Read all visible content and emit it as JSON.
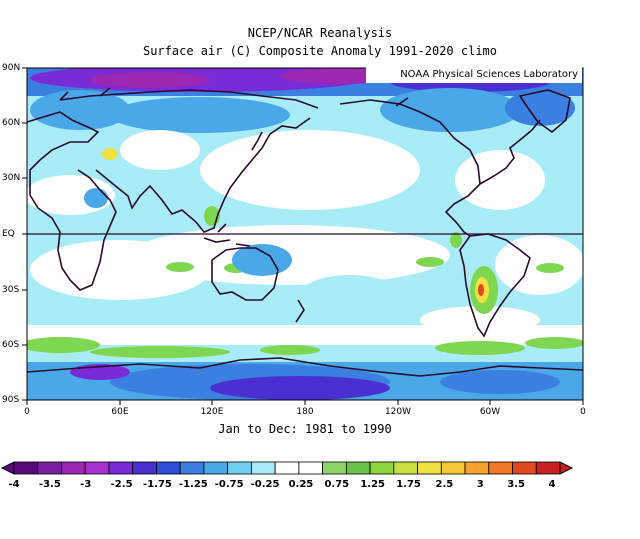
{
  "title": "NCEP/NCAR Reanalysis",
  "subtitle": "Surface air (C) Composite Anomaly 1991-2020 climo",
  "credit": "NOAA Physical Sciences Laboratory",
  "period": "Jan to Dec: 1981 to 1990",
  "lat_labels": [
    "90N",
    "60N",
    "30N",
    "EQ",
    "30S",
    "60S",
    "90S"
  ],
  "lon_labels": [
    "0",
    "60E",
    "120E",
    "180",
    "120W",
    "60W",
    "0"
  ],
  "colorbar": {
    "labels": [
      "-4",
      "-3.5",
      "-3",
      "-2.5",
      "-1.75",
      "-1.25",
      "-0.75",
      "-0.25",
      "0.25",
      "0.75",
      "1.25",
      "1.75",
      "2.5",
      "3",
      "3.5",
      "4"
    ],
    "colors": [
      "#5a0b7a",
      "#7b1fa2",
      "#9c27b0",
      "#a830d0",
      "#7a2bd8",
      "#4a30d0",
      "#2f4fd8",
      "#3b7fe0",
      "#4aa8e8",
      "#6fd0f0",
      "#a8ecf8",
      "#ffffff",
      "#ffffff",
      "#8ed66a",
      "#6ac24a",
      "#8fd63a",
      "#c8e040",
      "#f0e040",
      "#f8c838",
      "#f8a030",
      "#f07828",
      "#e04820",
      "#c82020"
    ]
  },
  "colors": {
    "strong_cold": "#7b1fa2",
    "cold": "#2f4fd8",
    "cool": "#4aa8e8",
    "slight_cool": "#9ff0f8",
    "neutral": "#ffffff",
    "slight_warm": "#7fd650",
    "warm": "#f0e040",
    "hot": "#e04820",
    "coast": "#2a0a2a"
  }
}
